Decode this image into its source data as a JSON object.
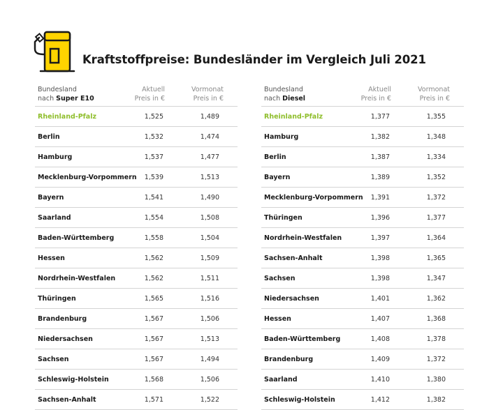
{
  "title": "Kraftstoffpreise: Bundesländer im Vergleich Juli 2021",
  "colors": {
    "accent": "#8fbe2c",
    "pump_yellow": "#ffd400",
    "pump_outline": "#1a1a1a"
  },
  "icon": "fuel-pump-icon",
  "super": {
    "head": {
      "region_l1": "Bundesland",
      "region_l2": "nach",
      "fuel": "Super E10",
      "cur_l1": "Aktuell",
      "cur_l2": "Preis in €",
      "prev_l1": "Vormonat",
      "prev_l2": "Preis in €"
    },
    "rows": [
      {
        "name": "Rheinland-Pfalz",
        "current": "1,525",
        "previous": "1,489"
      },
      {
        "name": "Berlin",
        "current": "1,532",
        "previous": "1,474"
      },
      {
        "name": "Hamburg",
        "current": "1,537",
        "previous": "1,477"
      },
      {
        "name": "Mecklenburg-Vorpommern",
        "current": "1,539",
        "previous": "1,513"
      },
      {
        "name": "Bayern",
        "current": "1,541",
        "previous": "1,490"
      },
      {
        "name": "Saarland",
        "current": "1,554",
        "previous": "1,508"
      },
      {
        "name": "Baden-Württemberg",
        "current": "1,558",
        "previous": "1,504"
      },
      {
        "name": "Hessen",
        "current": "1,562",
        "previous": "1,509"
      },
      {
        "name": "Nordrhein-Westfalen",
        "current": "1,562",
        "previous": "1,511"
      },
      {
        "name": "Thüringen",
        "current": "1,565",
        "previous": "1,516"
      },
      {
        "name": "Brandenburg",
        "current": "1,567",
        "previous": "1,506"
      },
      {
        "name": "Niedersachsen",
        "current": "1,567",
        "previous": "1,513"
      },
      {
        "name": "Sachsen",
        "current": "1,567",
        "previous": "1,494"
      },
      {
        "name": "Schleswig-Holstein",
        "current": "1,568",
        "previous": "1,506"
      },
      {
        "name": "Sachsen-Anhalt",
        "current": "1,571",
        "previous": "1,522"
      }
    ]
  },
  "diesel": {
    "head": {
      "region_l1": "Bundesland",
      "region_l2": "nach",
      "fuel": "Diesel",
      "cur_l1": "Aktuell",
      "cur_l2": "Preis in €",
      "prev_l1": "Vormonat",
      "prev_l2": "Preis in €"
    },
    "rows": [
      {
        "name": "Rheinland-Pfalz",
        "current": "1,377",
        "previous": "1,355"
      },
      {
        "name": "Hamburg",
        "current": "1,382",
        "previous": "1,348"
      },
      {
        "name": "Berlin",
        "current": "1,387",
        "previous": "1,334"
      },
      {
        "name": "Bayern",
        "current": "1,389",
        "previous": "1,352"
      },
      {
        "name": "Mecklenburg-Vorpommern",
        "current": "1,391",
        "previous": "1,372"
      },
      {
        "name": "Thüringen",
        "current": "1,396",
        "previous": "1,377"
      },
      {
        "name": "Nordrhein-Westfalen",
        "current": "1,397",
        "previous": "1,364"
      },
      {
        "name": "Sachsen-Anhalt",
        "current": "1,398",
        "previous": "1,365"
      },
      {
        "name": "Sachsen",
        "current": "1,398",
        "previous": "1,347"
      },
      {
        "name": "Niedersachsen",
        "current": "1,401",
        "previous": "1,362"
      },
      {
        "name": "Hessen",
        "current": "1,407",
        "previous": "1,368"
      },
      {
        "name": "Baden-Württemberg",
        "current": "1,408",
        "previous": "1,378"
      },
      {
        "name": "Brandenburg",
        "current": "1,409",
        "previous": "1,372"
      },
      {
        "name": "Saarland",
        "current": "1,410",
        "previous": "1,380"
      },
      {
        "name": "Schleswig-Holstein",
        "current": "1,412",
        "previous": "1,382"
      }
    ]
  }
}
